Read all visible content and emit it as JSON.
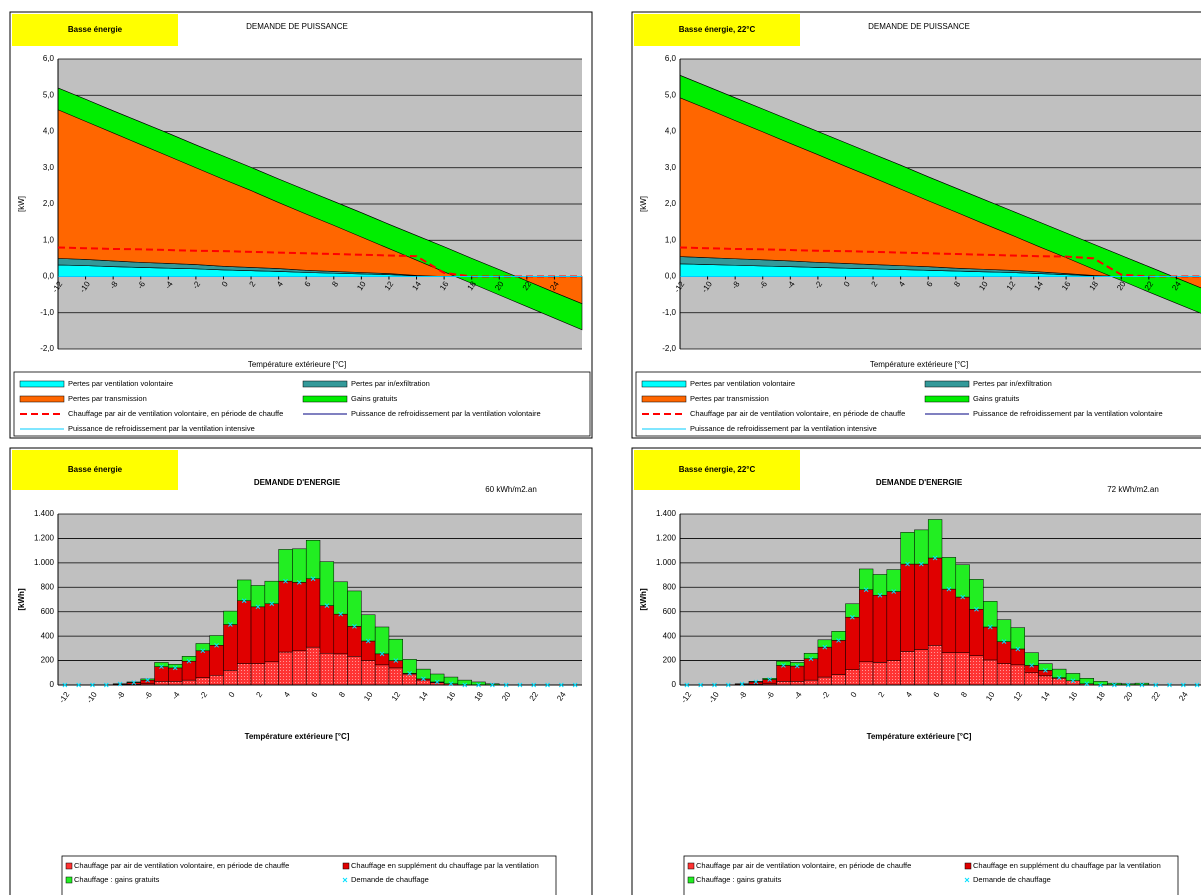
{
  "chart_data": [
    {
      "type": "area",
      "badge": "Basse énergie",
      "badge_color": "#ffff00",
      "title": "DEMANDE DE PUISSANCE",
      "ylabel": "[kW]",
      "xlabel": "Température extérieure [°C]",
      "plot_background": "#c0c0c0",
      "grid": true,
      "x": [
        -12,
        -10,
        -8,
        -6,
        -4,
        -2,
        0,
        2,
        4,
        6,
        8,
        10,
        12,
        14,
        16,
        18,
        20,
        22,
        24,
        26
      ],
      "xlim": [
        -12,
        26
      ],
      "xticks": [
        -12,
        -10,
        -8,
        -6,
        -4,
        -2,
        0,
        2,
        4,
        6,
        8,
        10,
        12,
        14,
        16,
        18,
        20,
        22,
        24
      ],
      "ylim": [
        -2,
        6
      ],
      "yticks": [
        {
          "value": -2,
          "label": "-2,0"
        },
        {
          "value": -1,
          "label": "-1,0"
        },
        {
          "value": 0,
          "label": "0,0"
        },
        {
          "value": 1,
          "label": "1,0"
        },
        {
          "value": 2,
          "label": "2,0"
        },
        {
          "value": 3,
          "label": "3,0"
        },
        {
          "value": 4,
          "label": "4,0"
        },
        {
          "value": 5,
          "label": "5,0"
        },
        {
          "value": 6,
          "label": "6,0"
        }
      ],
      "series": [
        {
          "name": "Pertes par ventilation volontaire",
          "color": "#00ffff",
          "type": "area",
          "values": [
            0.32,
            0.3,
            0.27,
            0.25,
            0.23,
            0.21,
            0.18,
            0.16,
            0.14,
            0.11,
            0.09,
            0.07,
            0.05,
            0.02,
            0,
            0,
            0,
            0,
            0,
            0
          ]
        },
        {
          "name": "Pertes par in/exfiltration",
          "color": "#339999",
          "type": "area",
          "values": [
            0.18,
            0.17,
            0.16,
            0.14,
            0.13,
            0.12,
            0.1,
            0.09,
            0.08,
            0.06,
            0.05,
            0.04,
            0.03,
            0.01,
            0,
            0,
            0,
            0,
            0,
            0
          ]
        },
        {
          "name": "Pertes par transmission",
          "color": "#ff6600",
          "type": "area",
          "values": [
            4.7,
            4.42,
            4.14,
            3.87,
            3.59,
            3.3,
            3.04,
            2.76,
            2.47,
            2.21,
            1.93,
            1.65,
            1.36,
            1.1,
            0.82,
            0.5,
            0.19,
            -0.12,
            -0.44,
            -0.75
          ]
        },
        {
          "name": "Gains gratuits",
          "color": "#00ee00",
          "type": "area",
          "values": [
            -0.6,
            -0.61,
            -0.61,
            -0.62,
            -0.63,
            -0.63,
            -0.64,
            -0.64,
            -0.65,
            -0.66,
            -0.66,
            -0.67,
            -0.67,
            -0.68,
            -0.69,
            -0.69,
            -0.7,
            -0.71,
            -0.71,
            -0.72
          ]
        },
        {
          "name": "Chauffage par air de ventilation volontaire, en période de chauffe",
          "color": "#ff0000",
          "type": "line",
          "dashed": true,
          "values": [
            0.8,
            0.78,
            0.76,
            0.75,
            0.73,
            0.71,
            0.7,
            0.68,
            0.66,
            0.64,
            0.62,
            0.6,
            0.58,
            0.56,
            0.1,
            0,
            0,
            0,
            0,
            0
          ]
        },
        {
          "name": "Puissance de refroidissement par la ventilation volontaire",
          "color": "#000080",
          "type": "line",
          "values": [
            0,
            0,
            0,
            0,
            0,
            0,
            0,
            0,
            0,
            0,
            0,
            0,
            0,
            0,
            0,
            0,
            0,
            0,
            0,
            0
          ]
        },
        {
          "name": "Puissance de refroidissement par la ventilation intensive",
          "color": "#00ccff",
          "type": "line",
          "values": [
            0,
            0,
            0,
            0,
            0,
            0,
            0,
            0,
            0,
            0,
            0,
            0,
            0,
            0,
            0,
            0,
            0,
            0,
            0,
            0
          ]
        }
      ]
    },
    {
      "type": "area",
      "badge": "Basse énergie, 22°C",
      "badge_color": "#ffff00",
      "title": "DEMANDE DE PUISSANCE",
      "ylabel": "[kW]",
      "xlabel": "Température extérieure [°C]",
      "plot_background": "#c0c0c0",
      "grid": true,
      "x": [
        -12,
        -10,
        -8,
        -6,
        -4,
        -2,
        0,
        2,
        4,
        6,
        8,
        10,
        12,
        14,
        16,
        18,
        20,
        22,
        24,
        26
      ],
      "xlim": [
        -12,
        26
      ],
      "xticks": [
        -12,
        -10,
        -8,
        -6,
        -4,
        -2,
        0,
        2,
        4,
        6,
        8,
        10,
        12,
        14,
        16,
        18,
        20,
        22,
        24
      ],
      "ylim": [
        -2,
        6
      ],
      "yticks": [
        {
          "value": -2,
          "label": "-2,0"
        },
        {
          "value": -1,
          "label": "-1,0"
        },
        {
          "value": 0,
          "label": "0,0"
        },
        {
          "value": 1,
          "label": "1,0"
        },
        {
          "value": 2,
          "label": "2,0"
        },
        {
          "value": 3,
          "label": "3,0"
        },
        {
          "value": 4,
          "label": "4,0"
        },
        {
          "value": 5,
          "label": "5,0"
        },
        {
          "value": 6,
          "label": "6,0"
        }
      ],
      "series": [
        {
          "name": "Pertes par ventilation volontaire",
          "color": "#00ffff",
          "type": "area",
          "values": [
            0.35,
            0.33,
            0.31,
            0.29,
            0.27,
            0.25,
            0.23,
            0.21,
            0.19,
            0.17,
            0.15,
            0.13,
            0.11,
            0.08,
            0.05,
            0.02,
            0,
            0,
            0,
            0
          ]
        },
        {
          "name": "Pertes par in/exfiltration",
          "color": "#339999",
          "type": "area",
          "values": [
            0.2,
            0.19,
            0.18,
            0.17,
            0.16,
            0.14,
            0.13,
            0.12,
            0.11,
            0.1,
            0.08,
            0.07,
            0.06,
            0.05,
            0.03,
            0.01,
            0,
            0,
            0,
            0
          ]
        },
        {
          "name": "Pertes par transmission",
          "color": "#ff6600",
          "type": "area",
          "values": [
            5.0,
            4.72,
            4.44,
            4.16,
            3.88,
            3.61,
            3.33,
            3.05,
            2.77,
            2.48,
            2.21,
            1.93,
            1.65,
            1.38,
            1.12,
            0.86,
            0.58,
            0.27,
            -0.04,
            -0.35
          ]
        },
        {
          "name": "Gains gratuits",
          "color": "#00ee00",
          "type": "area",
          "values": [
            -0.62,
            -0.62,
            -0.63,
            -0.63,
            -0.64,
            -0.64,
            -0.65,
            -0.65,
            -0.66,
            -0.66,
            -0.66,
            -0.67,
            -0.67,
            -0.68,
            -0.68,
            -0.69,
            -0.69,
            -0.7,
            -0.7,
            -0.7
          ]
        },
        {
          "name": "Chauffage par air de ventilation volontaire, en période de chauffe",
          "color": "#ff0000",
          "type": "line",
          "dashed": true,
          "values": [
            0.8,
            0.78,
            0.76,
            0.75,
            0.73,
            0.71,
            0.7,
            0.68,
            0.66,
            0.64,
            0.62,
            0.6,
            0.58,
            0.56,
            0.55,
            0.5,
            0.05,
            0,
            0,
            0
          ]
        },
        {
          "name": "Puissance de refroidissement par la ventilation volontaire",
          "color": "#000080",
          "type": "line",
          "values": [
            0,
            0,
            0,
            0,
            0,
            0,
            0,
            0,
            0,
            0,
            0,
            0,
            0,
            0,
            0,
            0,
            0,
            0,
            0,
            0
          ]
        },
        {
          "name": "Puissance de refroidissement par la ventilation intensive",
          "color": "#00ccff",
          "type": "line",
          "values": [
            0,
            0,
            0,
            0,
            0,
            0,
            0,
            0,
            0,
            0,
            0,
            0,
            0,
            0,
            0,
            0,
            0,
            0,
            0,
            0
          ]
        }
      ]
    },
    {
      "type": "bar",
      "stacked": true,
      "badge": "Basse énergie",
      "badge_color": "#ffff00",
      "title": "DEMANDE D'ENERGIE",
      "annotation": "60 kWh/m2.an",
      "ylabel": "[kWh]",
      "xlabel": "Température extérieure [°C]",
      "plot_background": "#c0c0c0",
      "grid": true,
      "categories": [
        "-12",
        null,
        "-10",
        null,
        "-8",
        null,
        "-6",
        null,
        "-4",
        null,
        "-2",
        null,
        "0",
        null,
        "2",
        null,
        "4",
        null,
        "6",
        null,
        "8",
        null,
        "10",
        null,
        "12",
        null,
        "14",
        null,
        "16",
        null,
        "18",
        null,
        "20",
        null,
        "22",
        null,
        "24",
        null
      ],
      "ylim": [
        0,
        1400
      ],
      "yticks": [
        0,
        200,
        400,
        600,
        800,
        {
          "value": 1000,
          "label": "1.000"
        },
        {
          "value": 1200,
          "label": "1.200"
        },
        {
          "value": 1400,
          "label": "1.400"
        }
      ],
      "series": [
        {
          "name": "Chauffage par air de ventilation volontaire, en période de chauffe",
          "color": "#ff3333",
          "pattern": "dots",
          "values": [
            0,
            0,
            0,
            0,
            2,
            5,
            10,
            30,
            30,
            40,
            60,
            80,
            120,
            175,
            175,
            190,
            270,
            280,
            310,
            260,
            255,
            235,
            200,
            165,
            140,
            90,
            40,
            20,
            10,
            0,
            0,
            0,
            0,
            0,
            0,
            0,
            0,
            0
          ]
        },
        {
          "name": "Chauffage en supplément du chauffage par la ventilation",
          "color": "#e00000",
          "values": [
            0,
            0,
            0,
            0,
            6,
            15,
            30,
            120,
            110,
            155,
            220,
            245,
            375,
            515,
            465,
            475,
            580,
            560,
            560,
            390,
            325,
            245,
            160,
            90,
            60,
            5,
            10,
            5,
            0,
            0,
            0,
            0,
            0,
            0,
            0,
            0,
            0,
            0
          ]
        },
        {
          "name": "Chauffage : gains gratuits",
          "color": "#22ee22",
          "values": [
            0,
            0,
            0,
            0,
            2,
            5,
            10,
            35,
            30,
            40,
            60,
            80,
            110,
            170,
            175,
            185,
            260,
            275,
            315,
            360,
            265,
            290,
            215,
            220,
            175,
            115,
            80,
            65,
            55,
            40,
            25,
            10,
            0,
            0,
            0,
            0,
            0,
            0
          ]
        },
        {
          "name": "Demande de chauffage",
          "color": "#00e0ff",
          "type": "marker",
          "values": [
            0,
            0,
            0,
            0,
            8,
            20,
            40,
            150,
            140,
            195,
            280,
            325,
            495,
            690,
            640,
            665,
            850,
            840,
            870,
            650,
            580,
            480,
            360,
            255,
            200,
            95,
            50,
            25,
            10,
            0,
            0,
            0,
            0,
            0,
            0,
            0,
            0,
            0
          ]
        }
      ]
    },
    {
      "type": "bar",
      "stacked": true,
      "badge": "Basse énergie, 22°C",
      "badge_color": "#ffff00",
      "title": "DEMANDE D'ENERGIE",
      "annotation": "72 kWh/m2.an",
      "ylabel": "[kWh]",
      "xlabel": "Température extérieure [°C]",
      "plot_background": "#c0c0c0",
      "grid": true,
      "categories": [
        "-12",
        null,
        "-10",
        null,
        "-8",
        null,
        "-6",
        null,
        "-4",
        null,
        "-2",
        null,
        "0",
        null,
        "2",
        null,
        "4",
        null,
        "6",
        null,
        "8",
        null,
        "10",
        null,
        "12",
        null,
        "14",
        null,
        "16",
        null,
        "18",
        null,
        "20",
        null,
        "22",
        null,
        "24",
        null
      ],
      "ylim": [
        0,
        1400
      ],
      "yticks": [
        0,
        200,
        400,
        600,
        800,
        {
          "value": 1000,
          "label": "1.000"
        },
        {
          "value": 1200,
          "label": "1.200"
        },
        {
          "value": 1400,
          "label": "1.400"
        }
      ],
      "series": [
        {
          "name": "Chauffage par air de ventilation volontaire, en période de chauffe",
          "color": "#ff3333",
          "pattern": "dots",
          "values": [
            0,
            0,
            0,
            0,
            2,
            5,
            10,
            30,
            30,
            40,
            65,
            85,
            125,
            190,
            185,
            200,
            275,
            290,
            325,
            265,
            265,
            240,
            205,
            175,
            165,
            100,
            75,
            55,
            35,
            10,
            0,
            0,
            0,
            0,
            0,
            0,
            0,
            0
          ]
        },
        {
          "name": "Chauffage en supplément du chauffage par la ventilation",
          "color": "#e00000",
          "values": [
            0,
            0,
            0,
            0,
            6,
            20,
            35,
            130,
            125,
            175,
            245,
            280,
            430,
            590,
            550,
            565,
            715,
            700,
            715,
            520,
            455,
            380,
            270,
            180,
            130,
            60,
            45,
            5,
            0,
            0,
            0,
            0,
            0,
            0,
            0,
            0,
            0,
            0
          ]
        },
        {
          "name": "Chauffage : gains gratuits",
          "color": "#22ee22",
          "values": [
            0,
            0,
            0,
            0,
            2,
            5,
            10,
            35,
            30,
            45,
            60,
            75,
            110,
            170,
            170,
            180,
            260,
            280,
            315,
            260,
            265,
            245,
            210,
            180,
            175,
            105,
            55,
            70,
            60,
            45,
            30,
            15,
            10,
            15,
            0,
            0,
            0,
            0
          ]
        },
        {
          "name": "Demande de chauffage",
          "color": "#00e0ff",
          "type": "marker",
          "values": [
            0,
            0,
            0,
            0,
            8,
            25,
            45,
            160,
            155,
            215,
            310,
            365,
            555,
            780,
            735,
            765,
            990,
            990,
            1040,
            785,
            720,
            620,
            475,
            355,
            295,
            160,
            120,
            60,
            35,
            10,
            0,
            0,
            0,
            0,
            0,
            0,
            0,
            0
          ]
        }
      ]
    }
  ]
}
